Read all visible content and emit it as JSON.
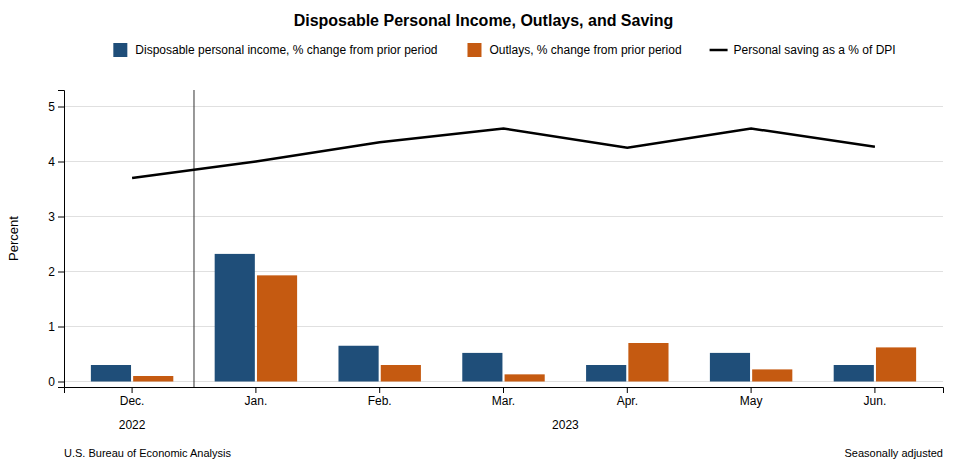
{
  "chart_data": {
    "type": "bar",
    "title": "Disposable Personal Income, Outlays, and Saving",
    "y_label": "Percent",
    "categories": [
      "Dec.",
      "Jan.",
      "Feb.",
      "Mar.",
      "Apr.",
      "May",
      "Jun."
    ],
    "series": [
      {
        "name": "Disposable personal income, % change from prior period",
        "color": "#1f4e79",
        "values": [
          0.3,
          2.32,
          0.65,
          0.52,
          0.3,
          0.52,
          0.3
        ]
      },
      {
        "name": "Outlays, % change from prior period",
        "color": "#c55a11",
        "values": [
          0.1,
          1.93,
          0.3,
          0.13,
          0.7,
          0.22,
          0.62
        ]
      },
      {
        "name": "Personal saving as a % of DPI",
        "type": "line",
        "color": "#000000",
        "values": [
          3.7,
          4.0,
          4.35,
          4.6,
          4.25,
          4.6,
          4.27
        ]
      }
    ],
    "ylim": [
      -0.1,
      5.3
    ],
    "yticks": [
      0,
      1,
      2,
      3,
      4,
      5
    ],
    "grid": true,
    "legend": "top",
    "annotations": [
      {
        "text": "2022",
        "categories": [
          "Dec."
        ]
      },
      {
        "text": "2023",
        "categories": [
          "Jan.",
          "Feb.",
          "Mar.",
          "Apr.",
          "May",
          "Jun."
        ]
      }
    ],
    "source": "U.S. Bureau of Economic Analysis",
    "note": "Seasonally adjusted"
  }
}
